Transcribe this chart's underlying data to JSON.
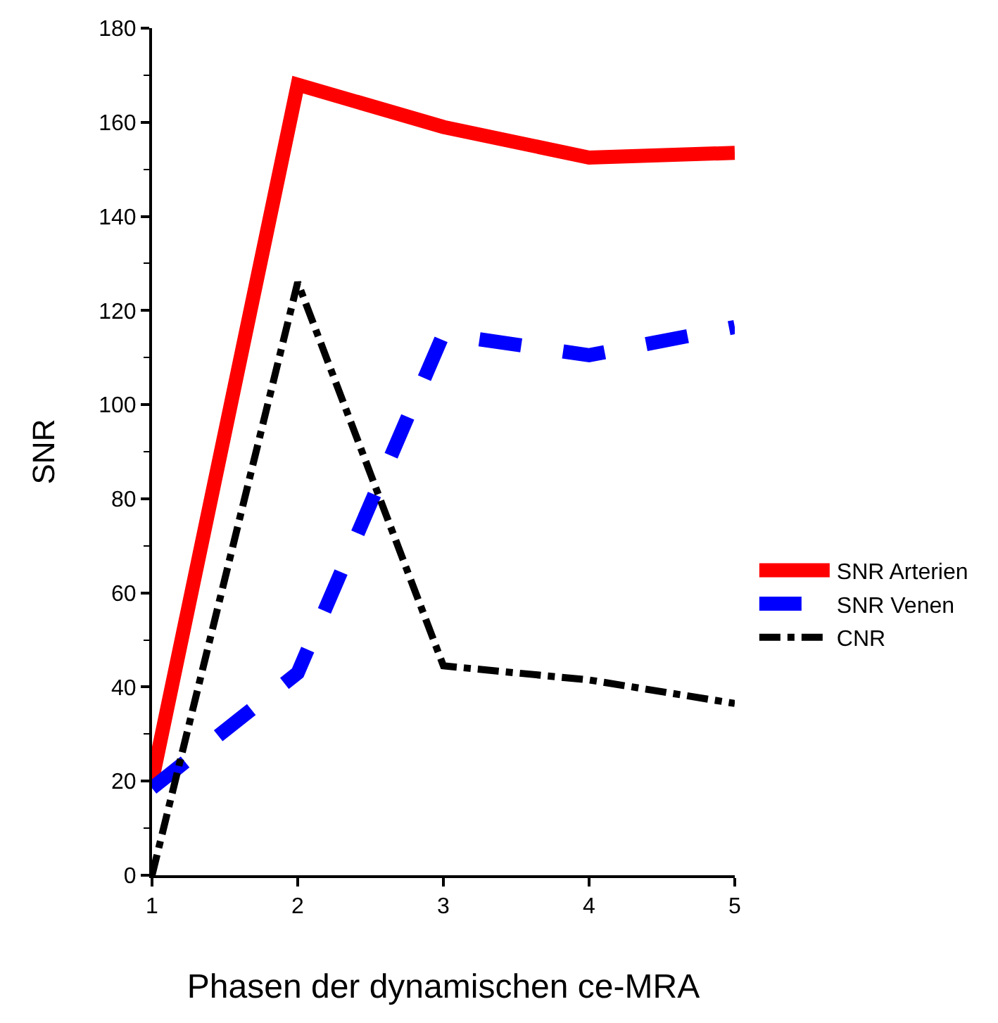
{
  "chart_data": {
    "type": "line",
    "xlabel": "Phasen der dynamischen ce-MRA",
    "ylabel": "SNR",
    "x": [
      1,
      2,
      3,
      4,
      5
    ],
    "series": [
      {
        "name": "SNR Arterien",
        "color": "#ff0000",
        "line_style": "solid",
        "values": [
          20,
          168,
          159,
          152.5,
          153.5
        ]
      },
      {
        "name": "SNR Venen",
        "color": "#0000ff",
        "line_style": "dashed",
        "values": [
          18.5,
          43,
          115,
          110.5,
          116.5
        ]
      },
      {
        "name": "CNR",
        "color": "#000000",
        "line_style": "dashdot",
        "values": [
          0,
          126,
          44.5,
          41.5,
          36.5
        ]
      }
    ],
    "xlim": [
      1,
      5
    ],
    "xticks": [
      1,
      2,
      3,
      4,
      5
    ],
    "ylim": [
      0,
      180
    ],
    "yticks": [
      0,
      20,
      40,
      60,
      80,
      100,
      120,
      140,
      160,
      180
    ],
    "legend": "right"
  }
}
